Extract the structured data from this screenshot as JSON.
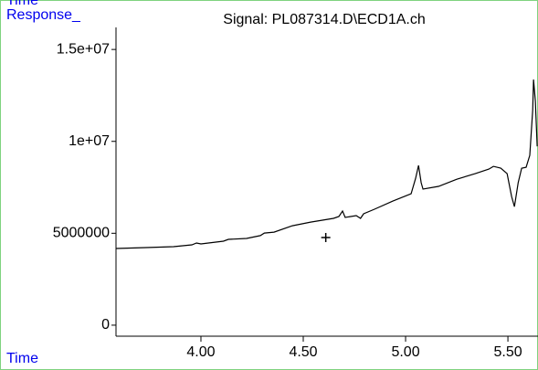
{
  "header_label": "Time",
  "chart_data": {
    "type": "line",
    "title": "Signal: PL087314.D\\ECD1A.ch",
    "y_label": "Response_",
    "x_label": "Time",
    "x": [
      3.585,
      3.732,
      3.866,
      3.956,
      3.978,
      4.0,
      4.11,
      4.134,
      4.223,
      4.29,
      4.31,
      4.357,
      4.447,
      4.536,
      4.648,
      4.674,
      4.692,
      4.705,
      4.759,
      4.78,
      4.795,
      4.848,
      4.938,
      5.027,
      5.049,
      5.063,
      5.076,
      5.085,
      5.161,
      5.25,
      5.34,
      5.407,
      5.429,
      5.465,
      5.496,
      5.518,
      5.532,
      5.55,
      5.567,
      5.589,
      5.607,
      5.621,
      5.625,
      5.634,
      5.643
    ],
    "series": [
      {
        "name": "ECD1A",
        "color": "#000000",
        "values": [
          4170000,
          4220000,
          4270000,
          4370000,
          4470000,
          4420000,
          4570000,
          4670000,
          4720000,
          4870000,
          5010000,
          5060000,
          5410000,
          5610000,
          5810000,
          5910000,
          6210000,
          5860000,
          5960000,
          5810000,
          6060000,
          6310000,
          6750000,
          7150000,
          7990000,
          8690000,
          7750000,
          7400000,
          7550000,
          7940000,
          8240000,
          8490000,
          8640000,
          8540000,
          8240000,
          7000000,
          6450000,
          7750000,
          8540000,
          8590000,
          9240000,
          11700000,
          13360000,
          12200000,
          9730000
        ]
      }
    ],
    "cursor": {
      "x": 4.61,
      "y": 4770000
    },
    "xlim": [
      3.585,
      5.647
    ],
    "ylim": [
      -600000,
      16200000
    ],
    "xticks": [
      {
        "value": 4,
        "label": "4.00"
      },
      {
        "value": 4.5,
        "label": "4.50"
      },
      {
        "value": 5,
        "label": "5.00"
      },
      {
        "value": 5.5,
        "label": "5.50"
      }
    ],
    "yticks": [
      0,
      5000000,
      {
        "value": 10000000,
        "label": "1e+07"
      },
      {
        "value": 15000000,
        "label": "1.5e+07"
      }
    ],
    "grid": false
  }
}
